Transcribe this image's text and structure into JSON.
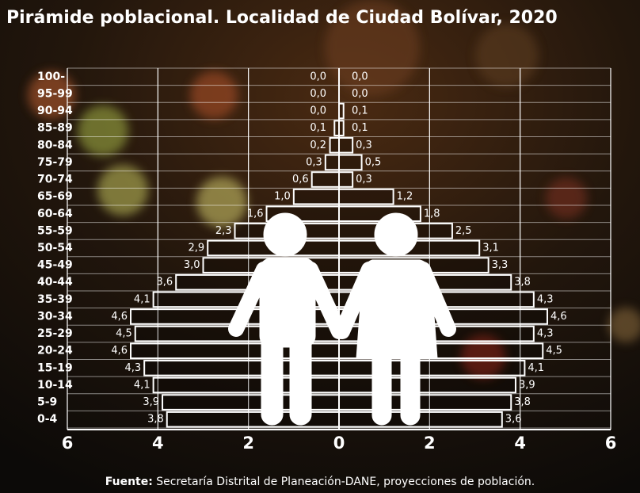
{
  "chart_data": {
    "type": "pyramid",
    "title": "Pirámide poblacional. Localidad de Ciudad Bolívar, 2020",
    "categories": [
      "100-",
      "95-99",
      "90-94",
      "85-89",
      "80-84",
      "75-79",
      "70-74",
      "65-69",
      "60-64",
      "55-59",
      "50-54",
      "45-49",
      "40-44",
      "35-39",
      "30-34",
      "25-29",
      "20-24",
      "15-19",
      "10-14",
      "5-9",
      "0-4"
    ],
    "series": [
      {
        "side": "left",
        "color": "#ffffff",
        "values": [
          0.0,
          0.0,
          0.0,
          0.1,
          0.2,
          0.3,
          0.6,
          1.0,
          1.6,
          2.3,
          2.9,
          3.0,
          3.6,
          4.1,
          4.6,
          4.5,
          4.6,
          4.3,
          4.1,
          3.9,
          3.8
        ],
        "value_labels": [
          "0,0",
          "0,0",
          "0,0",
          "0,1",
          "0,2",
          "0,3",
          "0,6",
          "1,0",
          "1,6",
          "2,3",
          "2,9",
          "3,0",
          "3,6",
          "4,1",
          "4,6",
          "4,5",
          "4,6",
          "4,3",
          "4,1",
          "3,9",
          "3,8"
        ]
      },
      {
        "side": "right",
        "color": "#ffffff",
        "values": [
          0.0,
          0.0,
          0.1,
          0.1,
          0.3,
          0.5,
          0.3,
          1.2,
          1.8,
          2.5,
          3.1,
          3.3,
          3.8,
          4.3,
          4.6,
          4.3,
          4.5,
          4.1,
          3.9,
          3.8,
          3.6
        ],
        "value_labels": [
          "0,0",
          "0,0",
          "0,1",
          "0,1",
          "0,3",
          "0,5",
          "0,3",
          "1,2",
          "1,8",
          "2,5",
          "3,1",
          "3,3",
          "3,8",
          "4,3",
          "4,6",
          "4,3",
          "4,5",
          "4,1",
          "3,9",
          "3,8",
          "3,6"
        ]
      }
    ],
    "xlim": [
      -6,
      6
    ],
    "xticks": [
      {
        "value": -6,
        "label": "6"
      },
      {
        "value": -4,
        "label": "4"
      },
      {
        "value": -2,
        "label": "2"
      },
      0,
      2,
      4,
      6
    ],
    "grid": true,
    "source_label": "Fuente:",
    "source_text": "Secretaría Distrital de Planeación-DANE, proyecciones de población."
  }
}
